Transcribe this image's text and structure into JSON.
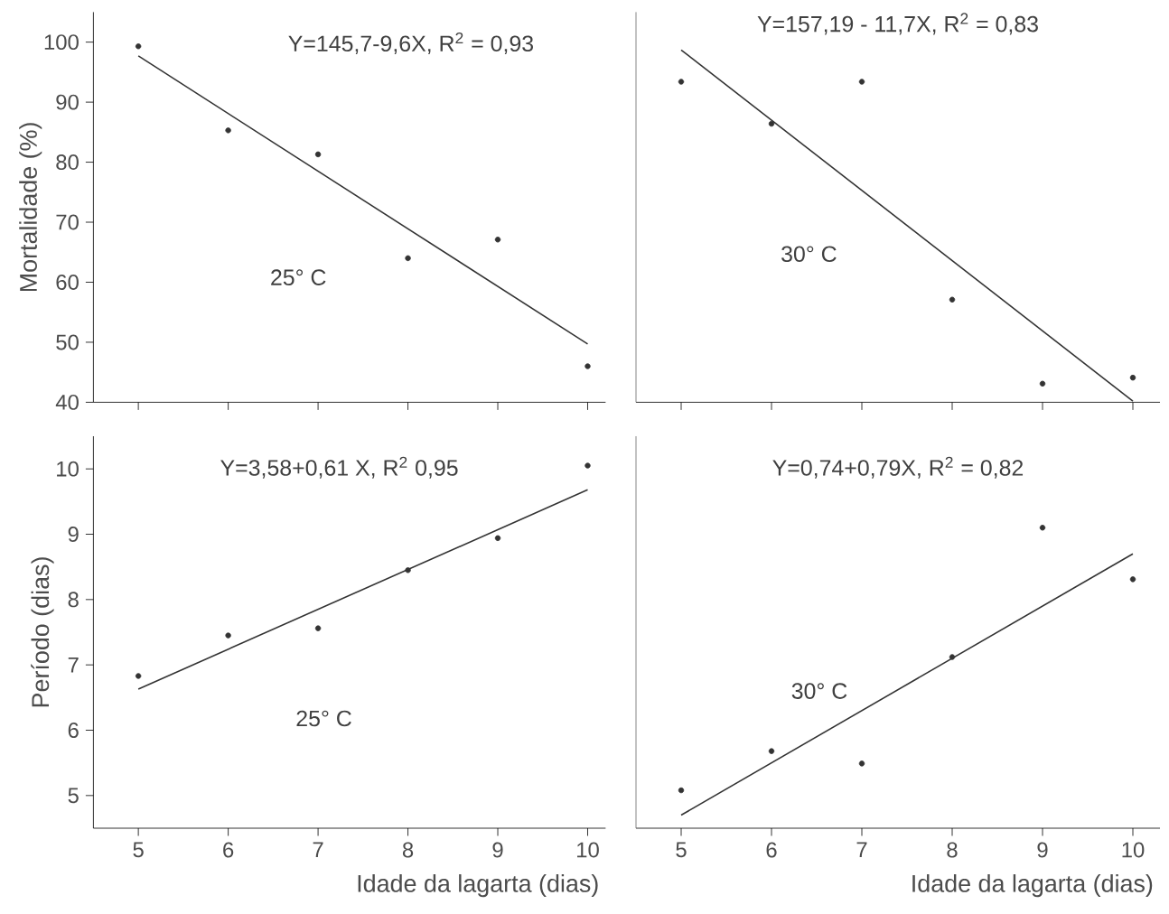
{
  "chart_data": [
    {
      "type": "scatter",
      "ylabel": "Mortalidade (%)",
      "xlim": [
        4.5,
        10.2
      ],
      "ylim": [
        40,
        105
      ],
      "xticks": [
        5,
        6,
        7,
        8,
        9,
        10
      ],
      "yticks": [
        40,
        50,
        60,
        70,
        80,
        90,
        100
      ],
      "tick_labels": "y",
      "annotations": [
        "Y=145,7-9,6X, R$^{2}$ = 0,93",
        "25° C"
      ],
      "series": [
        {
          "marker": "circle",
          "color": "#333333",
          "x": [
            5,
            6,
            7,
            8,
            9,
            10
          ],
          "values": [
            99.3,
            85.3,
            81.3,
            64,
            67.1,
            46
          ]
        },
        {
          "type": "line",
          "marker": "none",
          "color": "#333333",
          "x": [
            5,
            10
          ],
          "values": [
            97.7,
            49.7
          ]
        }
      ]
    },
    {
      "type": "scatter",
      "xlim": [
        4.5,
        10.3
      ],
      "ylim": [
        40,
        105
      ],
      "xticks": [
        5,
        6,
        7,
        8,
        9,
        10
      ],
      "yticks": [
        40,
        50,
        60,
        70,
        80,
        90,
        100
      ],
      "tick_labels": false,
      "annotations": [
        "Y=157,19 - 11,7X, R$^{2}$ = 0,83",
        "30° C"
      ],
      "series": [
        {
          "marker": "circle",
          "color": "#333333",
          "x": [
            5,
            6,
            7,
            8,
            9,
            10
          ],
          "values": [
            93.4,
            86.4,
            93.4,
            57.1,
            43.1,
            44.1
          ]
        },
        {
          "type": "line",
          "marker": "none",
          "color": "#333333",
          "x": [
            5,
            10
          ],
          "values": [
            98.7,
            40.2
          ]
        }
      ]
    },
    {
      "type": "scatter",
      "xlabel": "Idade da lagarta (dias)",
      "ylabel": "Período (dias)",
      "xlim": [
        4.5,
        10.2
      ],
      "ylim": [
        4.5,
        10.5
      ],
      "xticks": [
        5,
        6,
        7,
        8,
        9,
        10
      ],
      "yticks": [
        5,
        6,
        7,
        8,
        9,
        10
      ],
      "annotations": [
        "Y=3,58+0,61 X, R$^{2}$ 0,95",
        "25° C"
      ],
      "series": [
        {
          "marker": "circle",
          "color": "#333333",
          "x": [
            5,
            6,
            7,
            8,
            9,
            10
          ],
          "values": [
            6.83,
            7.45,
            7.56,
            8.45,
            8.94,
            10.05
          ]
        },
        {
          "type": "line",
          "marker": "none",
          "color": "#333333",
          "x": [
            5,
            10
          ],
          "values": [
            6.63,
            9.68
          ]
        }
      ]
    },
    {
      "type": "scatter",
      "xlabel": "Idade da lagarta (dias)",
      "xlim": [
        4.5,
        10.3
      ],
      "ylim": [
        4.5,
        10.5
      ],
      "xticks": [
        5,
        6,
        7,
        8,
        9,
        10
      ],
      "yticks": [
        5,
        6,
        7,
        8,
        9,
        10
      ],
      "tick_labels": "x",
      "annotations": [
        "Y=0,74+0,79X, R$^{2}$ = 0,82",
        "30° C"
      ],
      "series": [
        {
          "marker": "circle",
          "color": "#333333",
          "x": [
            5,
            6,
            7,
            8,
            9,
            10
          ],
          "values": [
            5.08,
            5.68,
            5.49,
            7.12,
            9.1,
            8.31
          ]
        },
        {
          "type": "line",
          "marker": "none",
          "color": "#333333",
          "x": [
            5,
            10
          ],
          "values": [
            4.7,
            8.7
          ]
        }
      ]
    }
  ]
}
